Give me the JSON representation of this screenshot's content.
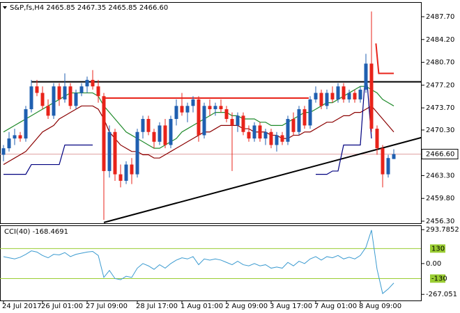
{
  "chart_data": [
    {
      "type": "candlestick",
      "title": "S&P,fs,H4 2465.85 2467.35 2465.85 2466.60",
      "categories": [
        "24 Jul 2017",
        null,
        null,
        null,
        null,
        null,
        null,
        "26 Jul 01:00",
        null,
        null,
        null,
        null,
        null,
        null,
        null,
        "27 Jul 09:00",
        null,
        null,
        null,
        null,
        null,
        null,
        null,
        null,
        "28 Jul 17:00",
        null,
        null,
        null,
        null,
        null,
        null,
        null,
        "1 Aug 01:00",
        null,
        null,
        null,
        null,
        null,
        null,
        null,
        "2 Aug 09:00",
        null,
        null,
        null,
        null,
        null,
        null,
        null,
        "3 Aug 17:00",
        null,
        null,
        null,
        null,
        null,
        null,
        null,
        "7 Aug 01:00",
        null,
        null,
        null,
        null,
        null,
        null,
        null,
        "8 Aug 09:00",
        null,
        null,
        null,
        null,
        null,
        null
      ],
      "open": [
        2466.5,
        2467.5,
        2469,
        2469.5,
        2469,
        2473.5,
        2477,
        2476,
        2474,
        2472.5,
        2477,
        2475,
        2477,
        2474,
        2476,
        2477,
        2478,
        2477,
        2475.5,
        2464,
        2470,
        2463.5,
        2462.5,
        2465,
        2463.5,
        2470,
        2472,
        2470,
        2468.5,
        2471,
        2468,
        2472,
        2474,
        2473,
        2474,
        2475,
        2469.5,
        2474,
        2473.5,
        2474,
        2473.5,
        2472,
        2471,
        2472.5,
        2470,
        2469,
        2471,
        2469,
        2470,
        2468,
        2469.5,
        2468.5,
        2472,
        2470,
        2473.5,
        2471,
        2475,
        2476,
        2474,
        2476,
        2475,
        2477,
        2475,
        2476,
        2475,
        2476.5,
        2480.5,
        2470.5,
        2467.5,
        2463.5,
        2465.85
      ],
      "high": [
        2468,
        2470,
        2470.5,
        2470,
        2474,
        2478,
        2478,
        2477,
        2475,
        2477.5,
        2477.5,
        2479,
        2477.5,
        2476.5,
        2477.5,
        2478.5,
        2479.5,
        2478,
        2476,
        2471,
        2470.5,
        2465,
        2465.5,
        2466,
        2470.5,
        2472.5,
        2472.5,
        2470.5,
        2471.5,
        2472,
        2472.5,
        2475,
        2476,
        2474.5,
        2475.5,
        2475.5,
        2474.5,
        2475,
        2474.5,
        2475,
        2474,
        2473,
        2473,
        2473,
        2471,
        2471.5,
        2471.5,
        2470.5,
        2470.5,
        2470,
        2470,
        2472.5,
        2473,
        2474,
        2474,
        2475.5,
        2477,
        2476.5,
        2476.5,
        2477,
        2477.5,
        2477.5,
        2476.5,
        2476.5,
        2477,
        2482,
        2488.5,
        2471,
        2468,
        2466.5,
        2467.35
      ],
      "low": [
        2465.5,
        2467,
        2468,
        2468.5,
        2468.5,
        2473,
        2475.5,
        2473.5,
        2472,
        2472,
        2474,
        2474.5,
        2473.5,
        2473.5,
        2475.5,
        2476,
        2476.5,
        2474.5,
        2456.5,
        2463,
        2462.5,
        2461.5,
        2462,
        2462,
        2463,
        2469,
        2469.5,
        2467.5,
        2468,
        2467.5,
        2467.5,
        2471,
        2472.5,
        2471.5,
        2473,
        2468.5,
        2469,
        2472.5,
        2472.5,
        2473,
        2471.5,
        2464,
        2470,
        2469.5,
        2468.5,
        2468.5,
        2468.5,
        2468,
        2467.5,
        2467,
        2468,
        2468,
        2469.5,
        2469.5,
        2470.5,
        2470.5,
        2474.5,
        2473.5,
        2473.5,
        2474.5,
        2474.5,
        2474.5,
        2474.5,
        2474.5,
        2474.5,
        2476,
        2470,
        2466.5,
        2461.5,
        2463,
        2465.85
      ],
      "close": [
        2467.5,
        2469,
        2469.5,
        2469,
        2473.5,
        2477,
        2476,
        2474,
        2472.5,
        2477,
        2475,
        2477,
        2474,
        2476,
        2477,
        2478,
        2477,
        2475.5,
        2464,
        2470,
        2463.5,
        2462.5,
        2465,
        2463.5,
        2470,
        2472,
        2470,
        2468.5,
        2471,
        2468,
        2472,
        2474,
        2473,
        2474,
        2475,
        2469.5,
        2474,
        2473.5,
        2474,
        2473.5,
        2472,
        2471,
        2472.5,
        2470,
        2469,
        2471,
        2469,
        2470,
        2468,
        2469.5,
        2468.5,
        2472,
        2470,
        2473.5,
        2471,
        2475,
        2476,
        2474,
        2476,
        2475,
        2477,
        2475,
        2476,
        2475,
        2476.5,
        2480.5,
        2470.5,
        2467.5,
        2463.5,
        2466,
        2466.6
      ],
      "bull_color": "#1f5fb0",
      "bear_color": "#e8231a",
      "series": [
        {
          "color": "#1f8a2a",
          "values": [
            2470,
            2470.5,
            2471,
            2471.5,
            2472,
            2472.5,
            2473,
            2473.5,
            2474,
            2474.5,
            2475,
            2475.5,
            2476,
            2476,
            2476,
            2476,
            2476,
            2475.5,
            2474,
            2473,
            2472,
            2471,
            2470,
            2469.5,
            2469,
            2468.5,
            2468,
            2467.5,
            2467.5,
            2468,
            2468.5,
            2469,
            2470,
            2470.5,
            2471,
            2471.5,
            2472,
            2472.5,
            2473,
            2473,
            2473,
            2472.5,
            2472.5,
            2472,
            2472,
            2472,
            2471.5,
            2471.5,
            2471,
            2471,
            2471,
            2471.5,
            2472,
            2472.5,
            2473,
            2473,
            2473.5,
            2474,
            2474.5,
            2474.5,
            2475,
            2475.5,
            2476,
            2476.5,
            2477,
            2477,
            2476.5,
            2476,
            2475,
            2474.5,
            2474
          ]
        },
        {
          "color": "#8b0000",
          "values": [
            2465,
            2465.5,
            2466,
            2466.5,
            2467,
            2468,
            2469,
            2470,
            2470.5,
            2471,
            2472,
            2472.5,
            2473,
            2473.5,
            2474,
            2474,
            2474,
            2473.5,
            2472,
            2470,
            2469,
            2468,
            2467.5,
            2467,
            2467,
            2466.5,
            2466.5,
            2466,
            2466,
            2466.5,
            2467,
            2467.5,
            2468,
            2468.5,
            2469,
            2469.5,
            2470,
            2470,
            2470.5,
            2471,
            2471,
            2471,
            2471,
            2470.5,
            2470.5,
            2470,
            2470,
            2470,
            2469.5,
            2469.5,
            2469,
            2469,
            2469.5,
            2469.5,
            2470,
            2470,
            2470.5,
            2471,
            2471.5,
            2471.5,
            2472,
            2472.5,
            2472.5,
            2473,
            2473,
            2473.5,
            2474,
            2473,
            2472,
            2471,
            2470
          ]
        },
        {
          "color": "#00007f",
          "values": [
            2463.5,
            2463.5,
            2463.5,
            2463.5,
            2463.5,
            2465,
            2465,
            2465,
            2465,
            2465,
            2465,
            2468,
            2468,
            2468,
            2468,
            2468,
            2468,
            null,
            null,
            null,
            null,
            null,
            null,
            null,
            null,
            null,
            null,
            null,
            null,
            null,
            null,
            null,
            null,
            null,
            null,
            null,
            null,
            null,
            null,
            null,
            null,
            null,
            null,
            null,
            null,
            null,
            null,
            null,
            null,
            null,
            null,
            null,
            null,
            null,
            null,
            null,
            2463.5,
            2463.5,
            2463.5,
            2464,
            2464,
            2468,
            2468,
            2468,
            2468,
            2480,
            2469,
            null,
            null,
            null,
            null
          ]
        }
      ],
      "segments": [
        {
          "color": "#000000",
          "x": [
            5,
            80
          ],
          "y": [
            2477.7,
            2477.7
          ]
        },
        {
          "color": "#e8231a",
          "x": [
            18,
            54.75
          ],
          "y": [
            2475.2,
            2475.2
          ]
        },
        {
          "color": "#000000",
          "x": [
            18,
            80
          ],
          "y": [
            2456.1,
            2470.3
          ]
        },
        {
          "color": "#e8231a",
          "x": [
            66.8,
            67.3,
            70
          ],
          "y": [
            2483.6,
            2479,
            2479
          ]
        }
      ],
      "last_price": {
        "value": 2466.6,
        "label": "2466.60"
      },
      "ylim": [
        2455.98,
        2489.84
      ],
      "yticks": [
        {
          "value": 2487.7,
          "label": "2487.70"
        },
        {
          "value": 2484.2,
          "label": "2484.20"
        },
        {
          "value": 2480.7,
          "label": "2480.70"
        },
        {
          "value": 2477.2,
          "label": "2477.20"
        },
        {
          "value": 2473.7,
          "label": "2473.70"
        },
        {
          "value": 2470.3,
          "label": "2470.30"
        },
        {
          "value": 2463.3,
          "label": "2463.30"
        },
        {
          "value": 2459.8,
          "label": "2459.80"
        },
        {
          "value": 2456.3,
          "label": "2456.30"
        }
      ]
    },
    {
      "type": "line",
      "title": "CCI(40) -168.4691",
      "color": "#3a9ad0",
      "values": [
        60,
        50,
        40,
        55,
        80,
        110,
        100,
        70,
        50,
        80,
        75,
        95,
        60,
        80,
        90,
        100,
        105,
        70,
        -120,
        -60,
        -130,
        -140,
        -110,
        -120,
        -40,
        0,
        -20,
        -50,
        -10,
        -40,
        0,
        30,
        50,
        40,
        60,
        -10,
        40,
        30,
        40,
        30,
        10,
        -10,
        20,
        -10,
        -20,
        0,
        -20,
        -10,
        -40,
        -30,
        -40,
        10,
        -20,
        20,
        0,
        40,
        60,
        30,
        60,
        50,
        70,
        40,
        55,
        40,
        70,
        140,
        290,
        -50,
        -260,
        -220,
        -168.4691
      ],
      "levels": [
        130,
        -130
      ],
      "level_color": "#9acd32",
      "ylim": [
        -320,
        325
      ],
      "yticks": [
        293.7852,
        {
          "value": 0,
          "label": "0.00"
        },
        -267.051
      ]
    }
  ]
}
